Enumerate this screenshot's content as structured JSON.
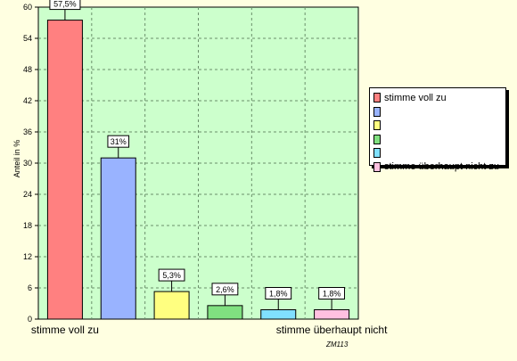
{
  "chart_data": {
    "type": "bar",
    "categories": [
      "stimme voll zu",
      "",
      "",
      "",
      "",
      "stimme überhaupt nicht"
    ],
    "values": [
      57.5,
      31,
      5.3,
      2.6,
      1.8,
      1.8
    ],
    "data_labels": [
      "57,5%",
      "31%",
      "5,3%",
      "2,6%",
      "1,8%",
      "1,8%"
    ],
    "colors": [
      "#ff8080",
      "#99b3ff",
      "#ffff80",
      "#80e080",
      "#80e0ff",
      "#ffc0e0"
    ],
    "ylabel": "Anteil in %",
    "ylim": [
      0,
      60
    ],
    "yticks": [
      "0",
      "6",
      "12",
      "18",
      "24",
      "30",
      "36",
      "42",
      "48",
      "54",
      "60"
    ],
    "grid": true,
    "plot_background": "#ccffcc",
    "legend": {
      "position": "right",
      "entries": [
        "stimme voll zu",
        "",
        "",
        "",
        "",
        "stimme überhaupt nicht zu"
      ]
    },
    "footnote": "ZM113"
  }
}
